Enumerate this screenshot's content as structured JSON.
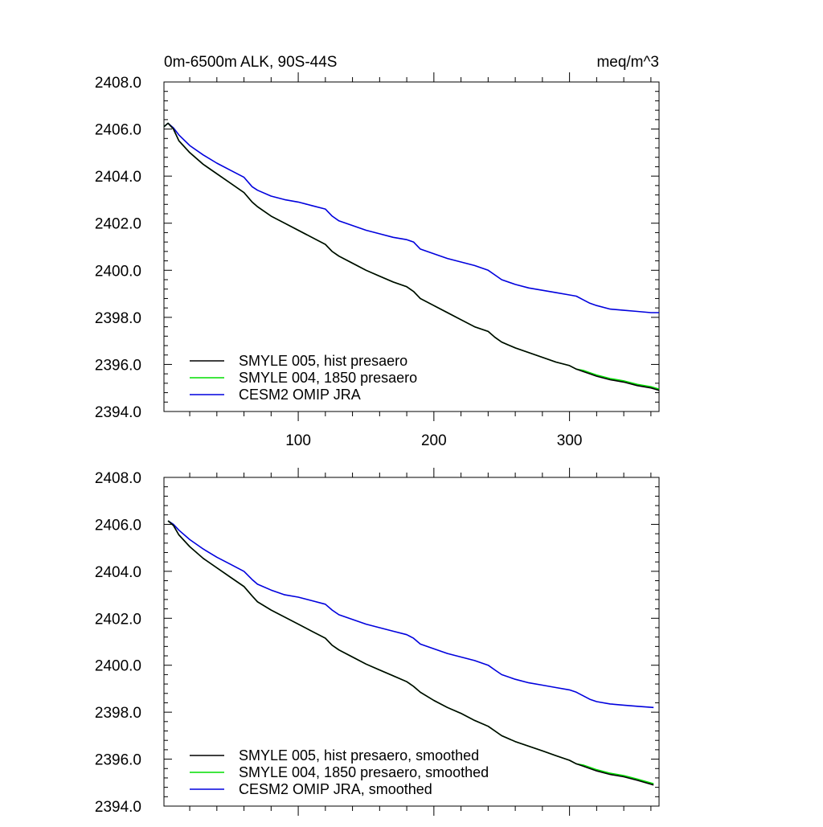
{
  "chart_data": [
    {
      "type": "line",
      "title": "0m-6500m ALK, 90S-44S",
      "units": "meq/m^3",
      "xlim": [
        1,
        366
      ],
      "ylim": [
        2394.0,
        2408.0
      ],
      "x_ticks": [
        100,
        200,
        300
      ],
      "x_tick_labels": [
        "100",
        "200",
        "300"
      ],
      "y_ticks": [
        2394.0,
        2396.0,
        2398.0,
        2400.0,
        2402.0,
        2404.0,
        2406.0,
        2408.0
      ],
      "y_tick_labels": [
        "2394.0",
        "2396.0",
        "2398.0",
        "2400.0",
        "2402.0",
        "2404.0",
        "2406.0",
        "2408.0"
      ],
      "grid": false,
      "legend_position": "bottom-left",
      "x": [
        1,
        4,
        8,
        12,
        20,
        30,
        40,
        50,
        60,
        66,
        70,
        80,
        90,
        100,
        110,
        120,
        125,
        130,
        140,
        150,
        160,
        170,
        180,
        185,
        190,
        200,
        210,
        220,
        230,
        240,
        245,
        250,
        260,
        270,
        280,
        290,
        300,
        305,
        310,
        315,
        320,
        330,
        340,
        350,
        360,
        366
      ],
      "series": [
        {
          "name": "SMYLE 005, hist presaero",
          "color": "#000000",
          "values": [
            2406.1,
            2406.25,
            2406.0,
            2405.5,
            2405.0,
            2404.5,
            2404.1,
            2403.7,
            2403.3,
            2402.9,
            2402.7,
            2402.3,
            2402.0,
            2401.7,
            2401.4,
            2401.1,
            2400.8,
            2400.6,
            2400.3,
            2400.0,
            2399.75,
            2399.5,
            2399.3,
            2399.1,
            2398.8,
            2398.5,
            2398.2,
            2397.9,
            2397.6,
            2397.4,
            2397.15,
            2396.95,
            2396.7,
            2396.5,
            2396.3,
            2396.1,
            2395.95,
            2395.8,
            2395.7,
            2395.6,
            2395.5,
            2395.35,
            2395.25,
            2395.1,
            2395.0,
            2394.9
          ]
        },
        {
          "name": "SMYLE 004, 1850 presaero",
          "color": "#00dd00",
          "values": [
            2406.1,
            2406.25,
            2406.0,
            2405.5,
            2405.0,
            2404.5,
            2404.1,
            2403.7,
            2403.3,
            2402.9,
            2402.7,
            2402.3,
            2402.0,
            2401.7,
            2401.4,
            2401.1,
            2400.8,
            2400.6,
            2400.3,
            2400.0,
            2399.75,
            2399.5,
            2399.3,
            2399.1,
            2398.8,
            2398.5,
            2398.2,
            2397.9,
            2397.6,
            2397.4,
            2397.15,
            2396.95,
            2396.7,
            2396.5,
            2396.3,
            2396.1,
            2395.95,
            2395.8,
            2395.75,
            2395.65,
            2395.55,
            2395.4,
            2395.3,
            2395.15,
            2395.05,
            2394.95
          ]
        },
        {
          "name": "CESM2 OMIP JRA",
          "color": "#0000dd",
          "values": [
            2406.1,
            2406.25,
            2406.05,
            2405.75,
            2405.3,
            2404.9,
            2404.55,
            2404.25,
            2403.95,
            2403.55,
            2403.4,
            2403.15,
            2403.0,
            2402.9,
            2402.75,
            2402.6,
            2402.3,
            2402.1,
            2401.9,
            2401.7,
            2401.55,
            2401.4,
            2401.3,
            2401.2,
            2400.9,
            2400.7,
            2400.5,
            2400.35,
            2400.2,
            2400.0,
            2399.8,
            2399.6,
            2399.4,
            2399.25,
            2399.15,
            2399.05,
            2398.95,
            2398.9,
            2398.75,
            2398.6,
            2398.5,
            2398.35,
            2398.3,
            2398.25,
            2398.2,
            2398.2
          ]
        }
      ]
    },
    {
      "type": "line",
      "xlim": [
        1,
        366
      ],
      "ylim": [
        2394.0,
        2408.0
      ],
      "x_ticks": [
        100,
        200,
        300
      ],
      "y_ticks": [
        2394.0,
        2396.0,
        2398.0,
        2400.0,
        2402.0,
        2404.0,
        2406.0,
        2408.0
      ],
      "y_tick_labels": [
        "2394.0",
        "2396.0",
        "2398.0",
        "2400.0",
        "2402.0",
        "2404.0",
        "2406.0",
        "2408.0"
      ],
      "grid": false,
      "legend_position": "bottom-left",
      "x": [
        4,
        8,
        12,
        20,
        30,
        40,
        50,
        60,
        66,
        70,
        80,
        90,
        100,
        110,
        120,
        125,
        130,
        140,
        150,
        160,
        170,
        180,
        185,
        190,
        200,
        210,
        220,
        230,
        240,
        245,
        250,
        260,
        270,
        280,
        290,
        300,
        305,
        310,
        315,
        320,
        330,
        340,
        350,
        362
      ],
      "series": [
        {
          "name": "SMYLE 005, hist presaero, smoothed",
          "color": "#000000",
          "values": [
            2406.15,
            2405.95,
            2405.55,
            2405.05,
            2404.55,
            2404.15,
            2403.75,
            2403.35,
            2402.95,
            2402.7,
            2402.35,
            2402.05,
            2401.75,
            2401.45,
            2401.15,
            2400.85,
            2400.65,
            2400.35,
            2400.05,
            2399.8,
            2399.55,
            2399.3,
            2399.1,
            2398.85,
            2398.5,
            2398.2,
            2397.95,
            2397.65,
            2397.4,
            2397.2,
            2397.0,
            2396.75,
            2396.55,
            2396.35,
            2396.15,
            2395.95,
            2395.8,
            2395.7,
            2395.6,
            2395.5,
            2395.35,
            2395.25,
            2395.1,
            2394.9
          ]
        },
        {
          "name": "SMYLE 004, 1850 presaero, smoothed",
          "color": "#00dd00",
          "values": [
            2406.15,
            2405.95,
            2405.55,
            2405.05,
            2404.55,
            2404.15,
            2403.75,
            2403.35,
            2402.95,
            2402.7,
            2402.35,
            2402.05,
            2401.75,
            2401.45,
            2401.15,
            2400.85,
            2400.65,
            2400.35,
            2400.05,
            2399.8,
            2399.55,
            2399.3,
            2399.1,
            2398.85,
            2398.5,
            2398.2,
            2397.95,
            2397.65,
            2397.4,
            2397.2,
            2397.0,
            2396.75,
            2396.55,
            2396.35,
            2396.15,
            2395.95,
            2395.8,
            2395.75,
            2395.65,
            2395.55,
            2395.4,
            2395.3,
            2395.15,
            2394.95
          ]
        },
        {
          "name": "CESM2 OMIP JRA, smoothed",
          "color": "#0000dd",
          "values": [
            2406.15,
            2406.0,
            2405.75,
            2405.35,
            2404.95,
            2404.6,
            2404.3,
            2404.0,
            2403.65,
            2403.45,
            2403.2,
            2403.0,
            2402.9,
            2402.75,
            2402.6,
            2402.35,
            2402.15,
            2401.95,
            2401.75,
            2401.6,
            2401.45,
            2401.3,
            2401.15,
            2400.9,
            2400.7,
            2400.5,
            2400.35,
            2400.2,
            2400.0,
            2399.8,
            2399.6,
            2399.4,
            2399.25,
            2399.15,
            2399.05,
            2398.95,
            2398.85,
            2398.7,
            2398.55,
            2398.45,
            2398.35,
            2398.3,
            2398.25,
            2398.2
          ]
        }
      ]
    }
  ]
}
